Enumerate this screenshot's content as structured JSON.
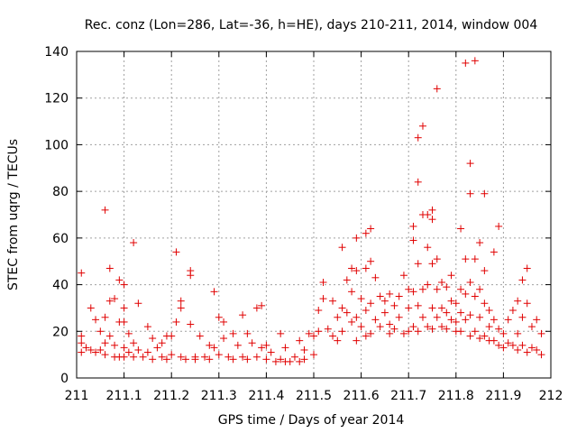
{
  "chart_data": {
    "type": "scatter",
    "title": "Rec. conz (Lon=286, Lat=-36, h=HE), days 210-211, 2014, window 004",
    "xlabel": "GPS time / Days of year 2014",
    "ylabel": "STEC from uqrg / TECUs",
    "xlim": [
      211,
      212
    ],
    "ylim": [
      0,
      140
    ],
    "x_ticks": [
      "211",
      "211.1",
      "211.2",
      "211.3",
      "211.4",
      "211.5",
      "211.6",
      "211.7",
      "211.8",
      "211.9",
      "212"
    ],
    "y_ticks": [
      "0",
      "20",
      "40",
      "60",
      "80",
      "100",
      "120",
      "140"
    ],
    "grid": true,
    "marker": "+",
    "color": "#e00000",
    "series": [
      {
        "name": "STEC",
        "points": [
          [
            211.01,
            45
          ],
          [
            211.01,
            18
          ],
          [
            211.01,
            15
          ],
          [
            211.01,
            11
          ],
          [
            211.02,
            13
          ],
          [
            211.03,
            30
          ],
          [
            211.03,
            12
          ],
          [
            211.04,
            25
          ],
          [
            211.04,
            11
          ],
          [
            211.05,
            20
          ],
          [
            211.05,
            12
          ],
          [
            211.06,
            72
          ],
          [
            211.06,
            26
          ],
          [
            211.06,
            15
          ],
          [
            211.06,
            10
          ],
          [
            211.07,
            47
          ],
          [
            211.07,
            33
          ],
          [
            211.07,
            18
          ],
          [
            211.08,
            34
          ],
          [
            211.08,
            14
          ],
          [
            211.08,
            9
          ],
          [
            211.09,
            42
          ],
          [
            211.09,
            24
          ],
          [
            211.09,
            9
          ],
          [
            211.1,
            40
          ],
          [
            211.1,
            30
          ],
          [
            211.1,
            24
          ],
          [
            211.1,
            13
          ],
          [
            211.1,
            9
          ],
          [
            211.11,
            19
          ],
          [
            211.11,
            11
          ],
          [
            211.12,
            58
          ],
          [
            211.12,
            15
          ],
          [
            211.12,
            9
          ],
          [
            211.13,
            32
          ],
          [
            211.13,
            12
          ],
          [
            211.14,
            9
          ],
          [
            211.15,
            22
          ],
          [
            211.15,
            11
          ],
          [
            211.16,
            17
          ],
          [
            211.16,
            8
          ],
          [
            211.17,
            13
          ],
          [
            211.18,
            15
          ],
          [
            211.18,
            9
          ],
          [
            211.19,
            18
          ],
          [
            211.19,
            8
          ],
          [
            211.2,
            18
          ],
          [
            211.2,
            10
          ],
          [
            211.21,
            54
          ],
          [
            211.21,
            24
          ],
          [
            211.22,
            33
          ],
          [
            211.22,
            30
          ],
          [
            211.22,
            9
          ],
          [
            211.23,
            8
          ],
          [
            211.24,
            46
          ],
          [
            211.24,
            44
          ],
          [
            211.24,
            23
          ],
          [
            211.25,
            9
          ],
          [
            211.25,
            8
          ],
          [
            211.26,
            18
          ],
          [
            211.27,
            9
          ],
          [
            211.28,
            14
          ],
          [
            211.28,
            8
          ],
          [
            211.29,
            37
          ],
          [
            211.29,
            13
          ],
          [
            211.3,
            26
          ],
          [
            211.3,
            10
          ],
          [
            211.31,
            24
          ],
          [
            211.31,
            17
          ],
          [
            211.32,
            9
          ],
          [
            211.33,
            19
          ],
          [
            211.33,
            8
          ],
          [
            211.34,
            14
          ],
          [
            211.35,
            27
          ],
          [
            211.35,
            9
          ],
          [
            211.36,
            19
          ],
          [
            211.36,
            8
          ],
          [
            211.37,
            15
          ],
          [
            211.38,
            30
          ],
          [
            211.38,
            9
          ],
          [
            211.39,
            31
          ],
          [
            211.39,
            13
          ],
          [
            211.4,
            14
          ],
          [
            211.4,
            8
          ],
          [
            211.41,
            11
          ],
          [
            211.42,
            7
          ],
          [
            211.43,
            19
          ],
          [
            211.43,
            8
          ],
          [
            211.44,
            13
          ],
          [
            211.44,
            7
          ],
          [
            211.45,
            7
          ],
          [
            211.46,
            9
          ],
          [
            211.47,
            16
          ],
          [
            211.47,
            7
          ],
          [
            211.48,
            12
          ],
          [
            211.48,
            8
          ],
          [
            211.49,
            19
          ],
          [
            211.5,
            18
          ],
          [
            211.5,
            10
          ],
          [
            211.51,
            29
          ],
          [
            211.51,
            20
          ],
          [
            211.52,
            41
          ],
          [
            211.52,
            34
          ],
          [
            211.53,
            21
          ],
          [
            211.54,
            33
          ],
          [
            211.54,
            18
          ],
          [
            211.55,
            26
          ],
          [
            211.55,
            16
          ],
          [
            211.56,
            56
          ],
          [
            211.56,
            30
          ],
          [
            211.56,
            20
          ],
          [
            211.57,
            42
          ],
          [
            211.57,
            28
          ],
          [
            211.58,
            47
          ],
          [
            211.58,
            37
          ],
          [
            211.58,
            24
          ],
          [
            211.59,
            60
          ],
          [
            211.59,
            46
          ],
          [
            211.59,
            26
          ],
          [
            211.59,
            16
          ],
          [
            211.6,
            34
          ],
          [
            211.6,
            22
          ],
          [
            211.61,
            62
          ],
          [
            211.61,
            47
          ],
          [
            211.61,
            29
          ],
          [
            211.61,
            18
          ],
          [
            211.62,
            64
          ],
          [
            211.62,
            50
          ],
          [
            211.62,
            32
          ],
          [
            211.62,
            19
          ],
          [
            211.63,
            43
          ],
          [
            211.63,
            25
          ],
          [
            211.64,
            35
          ],
          [
            211.64,
            22
          ],
          [
            211.65,
            33
          ],
          [
            211.65,
            28
          ],
          [
            211.66,
            36
          ],
          [
            211.66,
            23
          ],
          [
            211.66,
            19
          ],
          [
            211.67,
            31
          ],
          [
            211.67,
            21
          ],
          [
            211.68,
            35
          ],
          [
            211.68,
            26
          ],
          [
            211.69,
            44
          ],
          [
            211.69,
            19
          ],
          [
            211.7,
            38
          ],
          [
            211.7,
            30
          ],
          [
            211.7,
            20
          ],
          [
            211.71,
            65
          ],
          [
            211.71,
            59
          ],
          [
            211.71,
            37
          ],
          [
            211.71,
            22
          ],
          [
            211.72,
            103
          ],
          [
            211.72,
            84
          ],
          [
            211.72,
            49
          ],
          [
            211.72,
            31
          ],
          [
            211.72,
            20
          ],
          [
            211.73,
            108
          ],
          [
            211.73,
            70
          ],
          [
            211.73,
            38
          ],
          [
            211.73,
            26
          ],
          [
            211.74,
            70
          ],
          [
            211.74,
            56
          ],
          [
            211.74,
            40
          ],
          [
            211.74,
            22
          ],
          [
            211.75,
            72
          ],
          [
            211.75,
            68
          ],
          [
            211.75,
            49
          ],
          [
            211.75,
            30
          ],
          [
            211.75,
            21
          ],
          [
            211.76,
            124
          ],
          [
            211.76,
            51
          ],
          [
            211.76,
            38
          ],
          [
            211.76,
            26
          ],
          [
            211.77,
            41
          ],
          [
            211.77,
            30
          ],
          [
            211.77,
            22
          ],
          [
            211.78,
            39
          ],
          [
            211.78,
            28
          ],
          [
            211.78,
            21
          ],
          [
            211.79,
            44
          ],
          [
            211.79,
            33
          ],
          [
            211.79,
            25
          ],
          [
            211.8,
            32
          ],
          [
            211.8,
            24
          ],
          [
            211.8,
            20
          ],
          [
            211.81,
            64
          ],
          [
            211.81,
            38
          ],
          [
            211.81,
            28
          ],
          [
            211.81,
            20
          ],
          [
            211.82,
            135
          ],
          [
            211.82,
            51
          ],
          [
            211.82,
            36
          ],
          [
            211.82,
            25
          ],
          [
            211.83,
            92
          ],
          [
            211.83,
            79
          ],
          [
            211.83,
            41
          ],
          [
            211.83,
            27
          ],
          [
            211.83,
            18
          ],
          [
            211.84,
            136
          ],
          [
            211.84,
            51
          ],
          [
            211.84,
            35
          ],
          [
            211.84,
            20
          ],
          [
            211.85,
            58
          ],
          [
            211.85,
            38
          ],
          [
            211.85,
            26
          ],
          [
            211.85,
            17
          ],
          [
            211.86,
            79
          ],
          [
            211.86,
            46
          ],
          [
            211.86,
            32
          ],
          [
            211.86,
            18
          ],
          [
            211.87,
            29
          ],
          [
            211.87,
            22
          ],
          [
            211.87,
            16
          ],
          [
            211.88,
            54
          ],
          [
            211.88,
            25
          ],
          [
            211.88,
            16
          ],
          [
            211.89,
            65
          ],
          [
            211.89,
            21
          ],
          [
            211.89,
            14
          ],
          [
            211.9,
            19
          ],
          [
            211.9,
            13
          ],
          [
            211.91,
            25
          ],
          [
            211.91,
            15
          ],
          [
            211.92,
            29
          ],
          [
            211.92,
            14
          ],
          [
            211.93,
            33
          ],
          [
            211.93,
            19
          ],
          [
            211.93,
            12
          ],
          [
            211.94,
            42
          ],
          [
            211.94,
            26
          ],
          [
            211.94,
            14
          ],
          [
            211.95,
            47
          ],
          [
            211.95,
            32
          ],
          [
            211.95,
            11
          ],
          [
            211.96,
            22
          ],
          [
            211.96,
            13
          ],
          [
            211.97,
            25
          ],
          [
            211.97,
            12
          ],
          [
            211.98,
            19
          ],
          [
            211.98,
            10
          ]
        ]
      }
    ]
  }
}
